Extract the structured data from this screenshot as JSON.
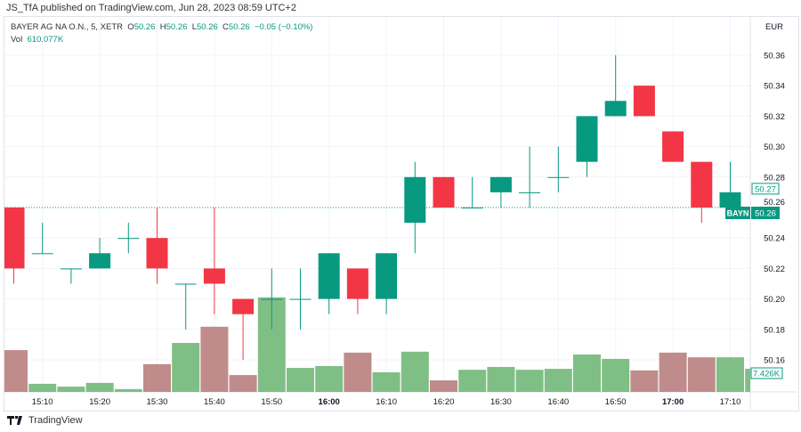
{
  "header": {
    "published": "JS_TfA published on TradingView.com, Jun 28, 2023 08:59 UTC+2"
  },
  "legend": {
    "symbol": "BAYER AG NA O.N., 5, XETR",
    "o_label": "O",
    "o": "50.26",
    "h_label": "H",
    "h": "50.26",
    "l_label": "L",
    "l": "50.26",
    "c_label": "C",
    "c": "50.26",
    "change": "−0.05 (−0.10%)",
    "vol_label": "Vol",
    "vol": "610.077K"
  },
  "currency": "EUR",
  "price_ticks": [
    "50.36",
    "50.34",
    "50.32",
    "50.30",
    "50.28",
    "50.26",
    "50.24",
    "50.22",
    "50.20",
    "50.18",
    "50.16"
  ],
  "time_ticks": [
    "15:10",
    "15:20",
    "15:30",
    "15:40",
    "15:50",
    "16:00",
    "16:10",
    "16:20",
    "16:30",
    "16:40",
    "16:50",
    "17:00",
    "17:10"
  ],
  "bold_ticks": [
    "16:00",
    "17:00"
  ],
  "labels": {
    "prev_close": "50.27",
    "symbol_tag": "BAYN",
    "last_price": "50.26",
    "last_volume": "7.426K"
  },
  "colors": {
    "up": "#089981",
    "down": "#f23645",
    "vol_up": "#7fbf85",
    "vol_down": "#c08b8b"
  },
  "footer": {
    "brand": "TradingView",
    "logo_icon": "tradingview-logo-icon"
  },
  "chart_data": {
    "type": "candlestick",
    "x": [
      "15:05",
      "15:10",
      "15:15",
      "15:20",
      "15:25",
      "15:30",
      "15:35",
      "15:40",
      "15:45",
      "15:50",
      "15:55",
      "16:00",
      "16:05",
      "16:10",
      "16:15",
      "16:20",
      "16:25",
      "16:30",
      "16:35",
      "16:40",
      "16:45",
      "16:50",
      "16:55",
      "17:00",
      "17:05",
      "17:10",
      "17:15"
    ],
    "open": [
      50.26,
      50.23,
      50.22,
      50.22,
      50.24,
      50.24,
      50.21,
      50.22,
      50.2,
      50.2,
      50.2,
      50.2,
      50.22,
      50.2,
      50.25,
      50.28,
      50.26,
      50.27,
      50.27,
      50.28,
      50.29,
      50.32,
      50.34,
      50.31,
      50.29,
      50.26,
      50.26
    ],
    "high": [
      50.26,
      50.25,
      50.22,
      50.24,
      50.25,
      50.26,
      50.21,
      50.26,
      50.2,
      50.22,
      50.22,
      50.23,
      50.22,
      50.23,
      50.29,
      50.28,
      50.28,
      50.28,
      50.3,
      50.3,
      50.32,
      50.36,
      50.34,
      50.31,
      50.29,
      50.29,
      50.26
    ],
    "low": [
      50.21,
      50.23,
      50.21,
      50.22,
      50.23,
      50.21,
      50.18,
      50.19,
      50.16,
      50.18,
      50.18,
      50.19,
      50.19,
      50.19,
      50.23,
      50.26,
      50.26,
      50.26,
      50.26,
      50.27,
      50.28,
      50.32,
      50.32,
      50.29,
      50.25,
      50.26,
      50.26
    ],
    "close": [
      50.22,
      50.23,
      50.22,
      50.23,
      50.24,
      50.22,
      50.21,
      50.21,
      50.19,
      50.2,
      50.2,
      50.23,
      50.2,
      50.23,
      50.28,
      50.26,
      50.26,
      50.28,
      50.27,
      50.28,
      50.32,
      50.33,
      50.32,
      50.29,
      50.26,
      50.27,
      50.26
    ],
    "volume_k": [
      13.4,
      2.6,
      1.7,
      2.9,
      0.9,
      8.9,
      15.7,
      20.9,
      5.4,
      30.3,
      7.7,
      8.3,
      12.6,
      6.3,
      12.9,
      3.7,
      7.1,
      8.0,
      7.1,
      7.4,
      12.0,
      10.6,
      6.9,
      12.6,
      11.1,
      11.1,
      7.426
    ],
    "ylim": [
      50.15,
      50.37
    ],
    "grid": true
  }
}
